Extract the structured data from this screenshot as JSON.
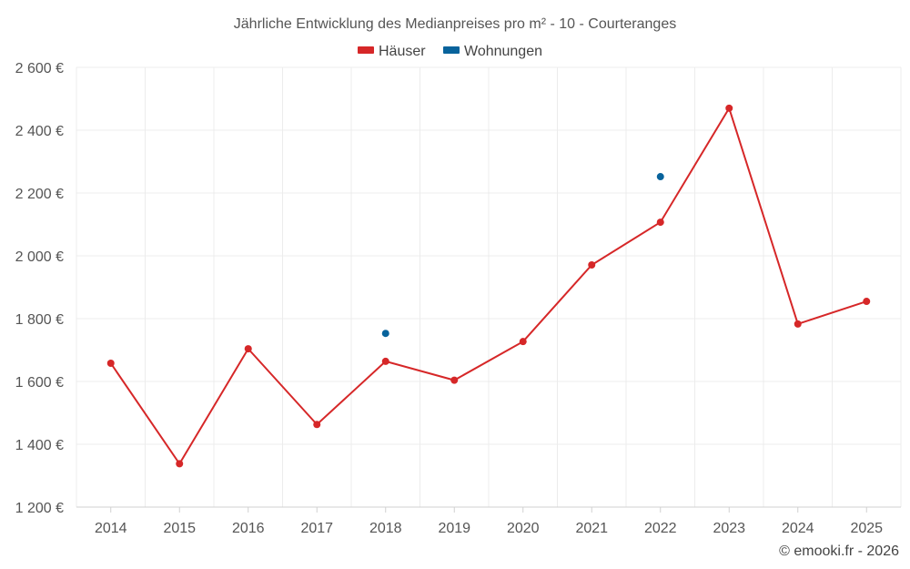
{
  "chart_data": {
    "type": "line",
    "title": "Jährliche Entwicklung des Medianpreises pro m² - 10 - Courteranges",
    "categories": [
      "2014",
      "2015",
      "2016",
      "2017",
      "2018",
      "2019",
      "2020",
      "2021",
      "2022",
      "2023",
      "2024",
      "2025"
    ],
    "series": [
      {
        "name": "Häuser",
        "color": "#d62728",
        "values": [
          1658,
          1338,
          1704,
          1463,
          1664,
          1604,
          1727,
          1971,
          2107,
          2470,
          1783,
          1855
        ]
      },
      {
        "name": "Wohnungen",
        "color": "#08639c",
        "values": [
          null,
          null,
          null,
          null,
          1753,
          null,
          null,
          null,
          null,
          null,
          null,
          null
        ]
      }
    ],
    "extra_points": [
      {
        "series": "Wohnungen",
        "category": "2022",
        "value": 2252
      }
    ],
    "ylim": [
      1200,
      2600
    ],
    "yticks": [
      1200,
      1400,
      1600,
      1800,
      2000,
      2200,
      2400,
      2600
    ],
    "ytick_labels": [
      "1 200 €",
      "1 400 €",
      "1 600 €",
      "1 800 €",
      "2 000 €",
      "2 200 €",
      "2 400 €",
      "2 600 €"
    ],
    "xlabel": "",
    "ylabel": "",
    "grid": true,
    "legend_position": "top-center"
  },
  "credit": "© emooki.fr - 2026"
}
